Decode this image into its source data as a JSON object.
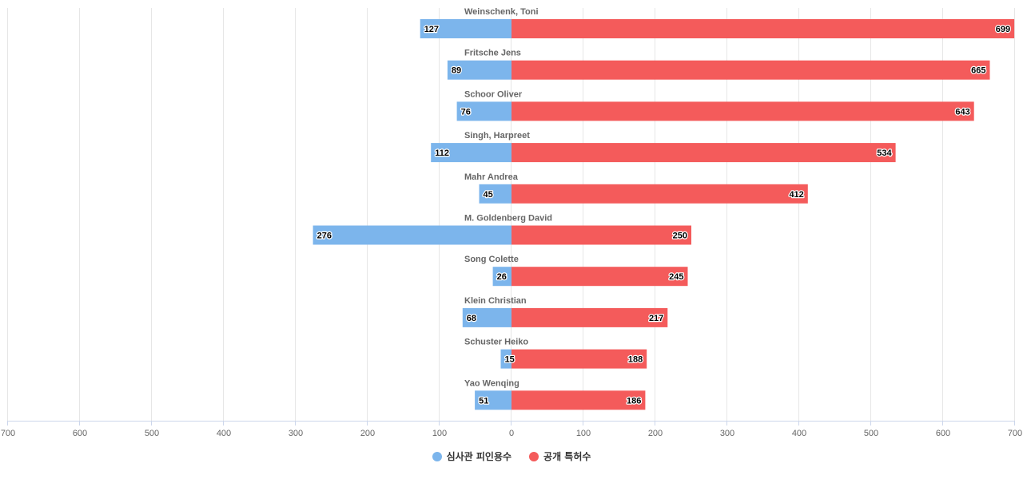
{
  "chart_data": {
    "type": "bar",
    "orientation": "horizontal",
    "layout": "diverging",
    "categories": [
      "Weinschenk, Toni",
      "Fritsche Jens",
      "Schoor Oliver",
      "Singh, Harpreet",
      "Mahr Andrea",
      "M. Goldenberg David",
      "Song Colette",
      "Klein Christian",
      "Schuster Heiko",
      "Yao Wenqing"
    ],
    "series": [
      {
        "name": "심사관 피인용수",
        "color": "#7cb5ec",
        "direction": "left",
        "values": [
          127,
          89,
          76,
          112,
          45,
          276,
          26,
          68,
          15,
          51
        ]
      },
      {
        "name": "공개 특허수",
        "color": "#f45b5b",
        "direction": "right",
        "values": [
          699,
          665,
          643,
          534,
          412,
          250,
          245,
          217,
          188,
          186
        ]
      }
    ],
    "xlim": [
      -700,
      700
    ],
    "xticks": [
      -700,
      -600,
      -500,
      -400,
      -300,
      -200,
      -100,
      0,
      100,
      200,
      300,
      400,
      500,
      600,
      700
    ],
    "xtick_labels": [
      "700",
      "600",
      "500",
      "400",
      "300",
      "200",
      "100",
      "0",
      "100",
      "200",
      "300",
      "400",
      "500",
      "600",
      "700"
    ],
    "grid": true,
    "legend": "bottom-center",
    "data_labels": true
  }
}
